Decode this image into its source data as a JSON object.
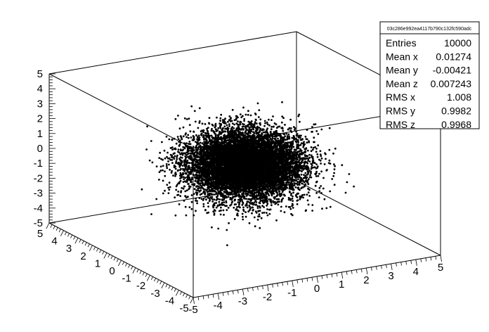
{
  "chart_data": {
    "type": "scatter",
    "dimensions": 3,
    "title": "",
    "xlabel": "",
    "ylabel": "",
    "zlabel": "",
    "xlim": [
      -5,
      5
    ],
    "ylim": [
      -5,
      5
    ],
    "zlim": [
      -5,
      5
    ],
    "x_ticks": [
      "-5",
      "-4",
      "-3",
      "-2",
      "-1",
      "0",
      "1",
      "2",
      "3",
      "4",
      "5"
    ],
    "y_ticks": [
      "5",
      "4",
      "3",
      "2",
      "1",
      "0",
      "-1",
      "-2",
      "-3",
      "-4",
      "-5"
    ],
    "z_ticks": [
      "5",
      "4",
      "3",
      "2",
      "1",
      "0",
      "-1",
      "-2",
      "-3",
      "-4",
      "-5"
    ],
    "distribution": {
      "kind": "gaussian",
      "mean": [
        0.01274,
        -0.00421,
        0.007243
      ],
      "rms": [
        1.008,
        0.9982,
        0.9968
      ]
    },
    "marker_color": "#000000",
    "stats_box": {
      "name": "03c286e992ea4117b790c132fc590adc",
      "rows": [
        {
          "label": "Entries",
          "value": "10000"
        },
        {
          "label": "Mean x",
          "value": "0.01274"
        },
        {
          "label": "Mean y",
          "value": "-0.00421"
        },
        {
          "label": "Mean z",
          "value": "0.007243"
        },
        {
          "label": "RMS x",
          "value": "1.008"
        },
        {
          "label": "RMS y",
          "value": "0.9982"
        },
        {
          "label": "RMS z",
          "value": "0.9968"
        }
      ]
    }
  }
}
